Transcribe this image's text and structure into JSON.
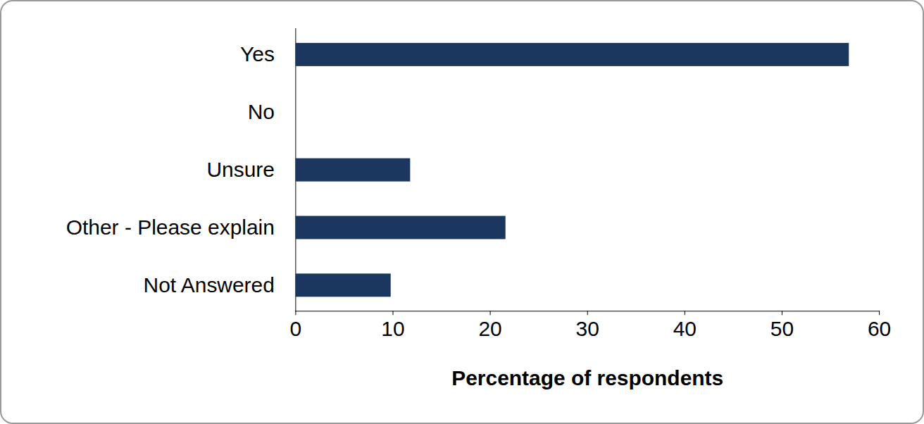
{
  "chart_data": {
    "type": "bar",
    "orientation": "horizontal",
    "categories": [
      "Yes",
      "No",
      "Unsure",
      "Other - Please explain",
      "Not Answered"
    ],
    "values": [
      56.9,
      0,
      11.8,
      21.6,
      9.8
    ],
    "color": "#1b365f",
    "xlabel": "Percentage of respondents",
    "xlim": [
      0,
      60
    ],
    "xticks": [
      0,
      10,
      20,
      30,
      40,
      50,
      60
    ],
    "grid": false
  }
}
